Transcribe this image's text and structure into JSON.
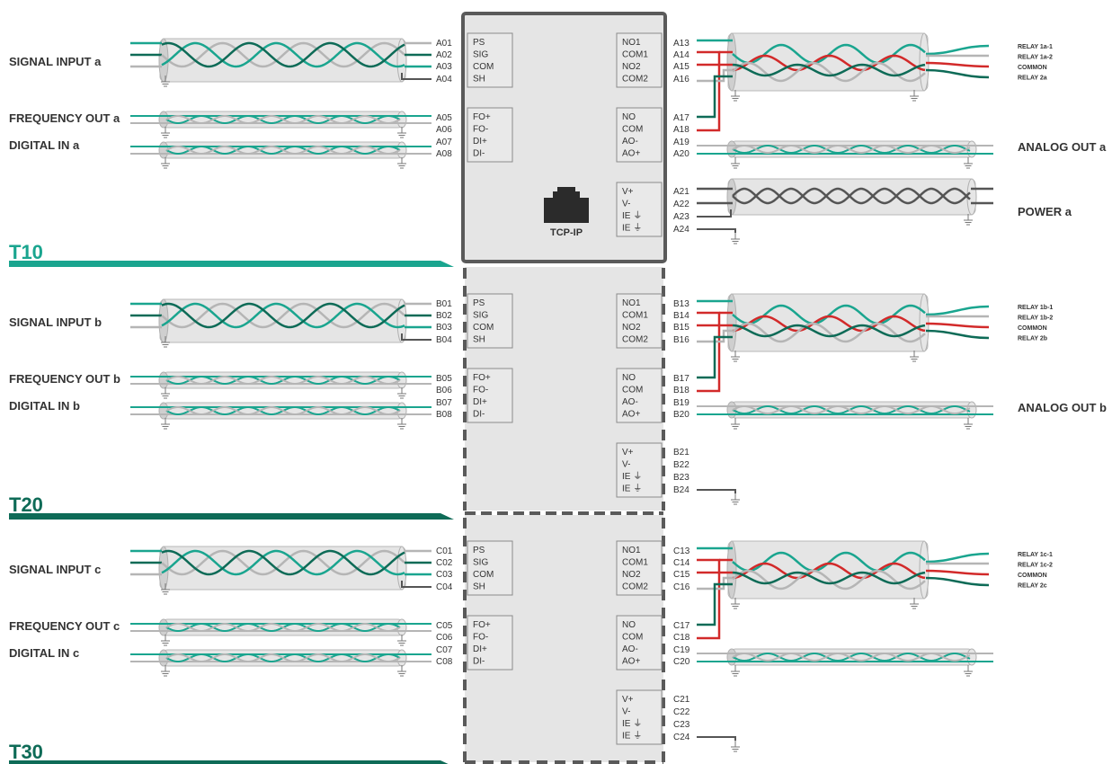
{
  "colors": {
    "teal": "#1aa58f",
    "dark_green": "#0e6b57",
    "grey_wire": "#b5b5b5",
    "dark_wire": "#555555",
    "red_wire": "#d22a2a",
    "module_fill": "#e5e5e5",
    "module_border": "#5a5a5a",
    "cable_sheath": "#dcdcdc",
    "t10_color": "#1aa58f",
    "t20_color": "#0e6b57",
    "t30_color": "#0e6b57"
  },
  "sections": [
    {
      "id": "T10",
      "label": "T10",
      "prefix": "A",
      "signal_input": "SIGNAL INPUT a",
      "frequency_out": "FREQUENCY OUT a",
      "digital_in": "DIGITAL IN a",
      "analog_out": "ANALOG OUT a",
      "power": "POWER a",
      "relay_labels": [
        "RELAY 1a-1",
        "RELAY 1a-2",
        "COMMON",
        "RELAY 2a"
      ],
      "left_pins": [
        "A01",
        "A02",
        "A03",
        "A04",
        "A05",
        "A06",
        "A07",
        "A08"
      ],
      "right_pins": [
        "A13",
        "A14",
        "A15",
        "A16",
        "A17",
        "A18",
        "A19",
        "A20",
        "A21",
        "A22",
        "A23",
        "A24"
      ],
      "has_tcp": true,
      "tcp_label": "TCP-IP"
    },
    {
      "id": "T20",
      "label": "T20",
      "prefix": "B",
      "signal_input": "SIGNAL INPUT b",
      "frequency_out": "FREQUENCY OUT b",
      "digital_in": "DIGITAL IN b",
      "analog_out": "ANALOG OUT b",
      "power": "",
      "relay_labels": [
        "RELAY 1b-1",
        "RELAY 1b-2",
        "COMMON",
        "RELAY 2b"
      ],
      "left_pins": [
        "B01",
        "B02",
        "B03",
        "B04",
        "B05",
        "B06",
        "B07",
        "B08"
      ],
      "right_pins": [
        "B13",
        "B14",
        "B15",
        "B16",
        "B17",
        "B18",
        "B19",
        "B20",
        "B21",
        "B22",
        "B23",
        "B24"
      ],
      "has_tcp": false,
      "tcp_label": ""
    },
    {
      "id": "T30",
      "label": "T30",
      "prefix": "C",
      "signal_input": "SIGNAL INPUT c",
      "frequency_out": "FREQUENCY OUT c",
      "digital_in": "DIGITAL IN c",
      "analog_out": "",
      "power": "",
      "relay_labels": [
        "RELAY 1c-1",
        "RELAY 1c-2",
        "COMMON",
        "RELAY 2c"
      ],
      "left_pins": [
        "C01",
        "C02",
        "C03",
        "C04",
        "C05",
        "C06",
        "C07",
        "C08"
      ],
      "right_pins": [
        "C13",
        "C14",
        "C15",
        "C16",
        "C17",
        "C18",
        "C19",
        "C20",
        "C21",
        "C22",
        "C23",
        "C24"
      ],
      "has_tcp": false,
      "tcp_label": ""
    }
  ],
  "terminal_blocks": {
    "signal": [
      "PS",
      "SIG",
      "COM",
      "SH"
    ],
    "freq_digital": [
      "FO+",
      "FO-",
      "DI+",
      "DI-"
    ],
    "relay": [
      "NO1",
      "COM1",
      "NO2",
      "COM2"
    ],
    "analog": [
      "NO",
      "COM",
      "AO-",
      "AO+"
    ],
    "power": [
      "V+",
      "V-",
      "IE ⏚",
      "IE ⏚"
    ]
  },
  "icons": {
    "ground": "ground-icon",
    "ethernet": "ethernet-port-icon"
  }
}
